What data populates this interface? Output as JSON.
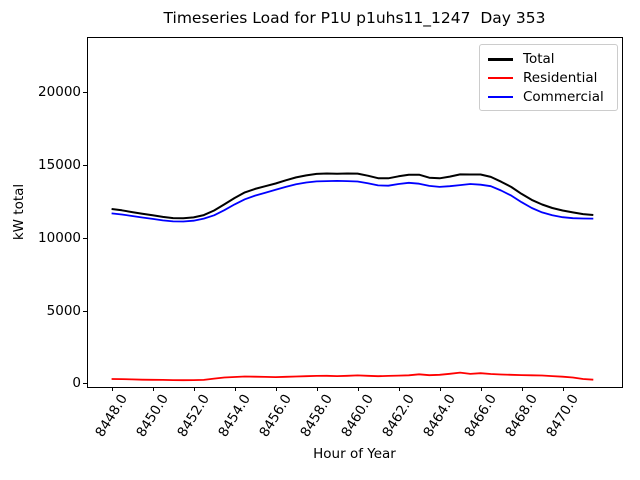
{
  "chart_data": {
    "type": "line",
    "title": "Timeseries Load for P1U p1uhs11_1247  Day 353",
    "xlabel": "Hour of Year",
    "ylabel": "kW total",
    "xlim": [
      8446.8,
      8472.9
    ],
    "ylim": [
      -250,
      23800
    ],
    "grid": false,
    "x_ticks": [
      8448,
      8450,
      8452,
      8454,
      8456,
      8458,
      8460,
      8462,
      8464,
      8466,
      8468,
      8470
    ],
    "x_tick_labels": [
      "8448.0",
      "8450.0",
      "8452.0",
      "8454.0",
      "8456.0",
      "8458.0",
      "8460.0",
      "8462.0",
      "8464.0",
      "8466.0",
      "8468.0",
      "8470.0"
    ],
    "y_ticks": [
      0,
      5000,
      10000,
      15000,
      20000
    ],
    "y_tick_labels": [
      "0",
      "5000",
      "10000",
      "15000",
      "20000"
    ],
    "legend": {
      "position": "upper right",
      "entries": [
        "Total",
        "Residential",
        "Commercial"
      ]
    },
    "x": [
      8448.0,
      8448.5,
      8449.0,
      8449.5,
      8450.0,
      8450.5,
      8451.0,
      8451.5,
      8452.0,
      8452.5,
      8453.0,
      8453.5,
      8454.0,
      8454.5,
      8455.0,
      8455.5,
      8456.0,
      8456.5,
      8457.0,
      8457.5,
      8458.0,
      8458.5,
      8459.0,
      8459.5,
      8460.0,
      8460.5,
      8461.0,
      8461.5,
      8462.0,
      8462.5,
      8463.0,
      8463.5,
      8464.0,
      8464.5,
      8465.0,
      8465.5,
      8466.0,
      8466.5,
      8467.0,
      8467.5,
      8468.0,
      8468.5,
      8469.0,
      8469.5,
      8470.0,
      8470.5,
      8471.0,
      8471.5
    ],
    "series": [
      {
        "name": "Total",
        "color": "#000000",
        "line_width": 2,
        "values": [
          11980,
          11890,
          11770,
          11655,
          11545,
          11435,
          11355,
          11340,
          11405,
          11560,
          11880,
          12300,
          12740,
          13120,
          13360,
          13545,
          13730,
          13950,
          14150,
          14290,
          14390,
          14420,
          14410,
          14420,
          14415,
          14270,
          14095,
          14090,
          14230,
          14335,
          14340,
          14130,
          14090,
          14210,
          14360,
          14350,
          14350,
          14190,
          13860,
          13490,
          13020,
          12605,
          12290,
          12050,
          11880,
          11750,
          11630,
          11570
        ]
      },
      {
        "name": "Residential",
        "color": "#ff0000",
        "line_width": 1.8,
        "values": [
          300,
          290,
          270,
          255,
          245,
          235,
          225,
          220,
          225,
          240,
          330,
          400,
          440,
          470,
          460,
          445,
          430,
          450,
          470,
          490,
          510,
          520,
          500,
          520,
          545,
          520,
          495,
          510,
          530,
          555,
          620,
          560,
          590,
          660,
          740,
          650,
          700,
          640,
          610,
          590,
          570,
          555,
          540,
          500,
          460,
          400,
          300,
          250
        ]
      },
      {
        "name": "Commercial",
        "color": "#0000ff",
        "line_width": 1.8,
        "values": [
          11680,
          11600,
          11500,
          11400,
          11300,
          11200,
          11130,
          11120,
          11180,
          11320,
          11550,
          11900,
          12300,
          12650,
          12900,
          13100,
          13300,
          13500,
          13680,
          13800,
          13880,
          13900,
          13910,
          13900,
          13870,
          13750,
          13600,
          13580,
          13700,
          13780,
          13720,
          13570,
          13500,
          13550,
          13620,
          13700,
          13650,
          13550,
          13250,
          12900,
          12450,
          12050,
          11750,
          11550,
          11420,
          11350,
          11330,
          11320
        ]
      }
    ]
  }
}
